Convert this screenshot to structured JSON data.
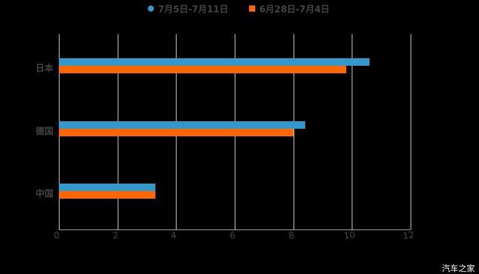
{
  "chart_data": {
    "type": "bar",
    "orientation": "horizontal",
    "title": "",
    "categories": [
      "日本",
      "德国",
      "中国"
    ],
    "series": [
      {
        "name": "7月5日-7月11日",
        "color": "#3399cc",
        "values": [
          10.6,
          8.4,
          3.3
        ]
      },
      {
        "name": "6月28日-7月4日",
        "color": "#ff6600",
        "values": [
          9.8,
          8.0,
          3.3
        ]
      }
    ],
    "xlabel": "",
    "ylabel": "",
    "xlim": [
      0,
      12
    ],
    "xticks": [
      "0",
      "2",
      "4",
      "6",
      "8",
      "10",
      "12"
    ],
    "grid": true,
    "legend_position": "top"
  },
  "legend": {
    "items": [
      {
        "label": "7月5日-7月11日",
        "color": "#3399cc",
        "shape": "circle"
      },
      {
        "label": "6月28日-7月4日",
        "color": "#ff6600",
        "shape": "square"
      }
    ]
  },
  "watermark": "汽车之家"
}
